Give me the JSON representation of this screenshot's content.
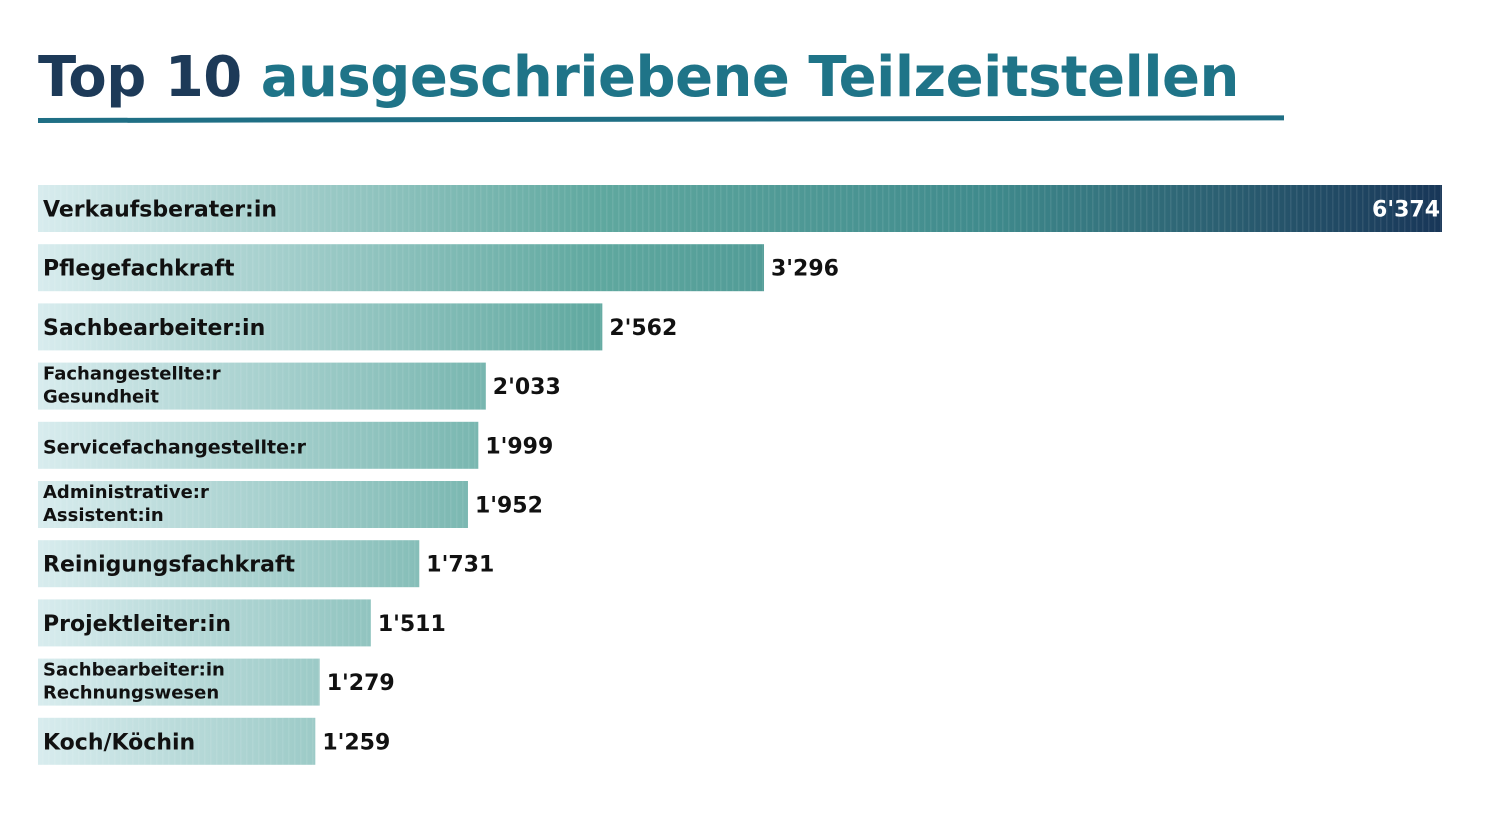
{
  "title": {
    "part1": "Top 10",
    "part2": "ausgeschriebene Teilzeitstellen"
  },
  "colors": {
    "title_dark": "#1d3a58",
    "title_accent": "#1f7488",
    "bar_start": "#d8ecee",
    "bar_mid": "#5fa89f",
    "bar_end": "#183658"
  },
  "chart_data": {
    "type": "bar",
    "orientation": "horizontal",
    "title": "Top 10 ausgeschriebene Teilzeitstellen",
    "xlabel": "",
    "ylabel": "",
    "xlim": [
      0,
      6374
    ],
    "grid": false,
    "legend": "none",
    "categories": [
      [
        "Verkaufsberater:in"
      ],
      [
        "Pflegefachkraft"
      ],
      [
        "Sachbearbeiter:in"
      ],
      [
        "Fachangestellte:r",
        "Gesundheit"
      ],
      [
        "Servicefachangestellte:r"
      ],
      [
        "Administrative:r",
        "Assistent:in"
      ],
      [
        "Reinigungsfachkraft"
      ],
      [
        "Projektleiter:in"
      ],
      [
        "Sachbearbeiter:in",
        "Rechnungswesen"
      ],
      [
        "Koch/Köchin"
      ]
    ],
    "values": [
      6374,
      3296,
      2562,
      2033,
      1999,
      1952,
      1731,
      1511,
      1279,
      1259
    ],
    "value_labels": [
      "6'374",
      "3'296",
      "2'562",
      "2'033",
      "1'999",
      "1'952",
      "1'731",
      "1'511",
      "1'279",
      "1'259"
    ]
  }
}
